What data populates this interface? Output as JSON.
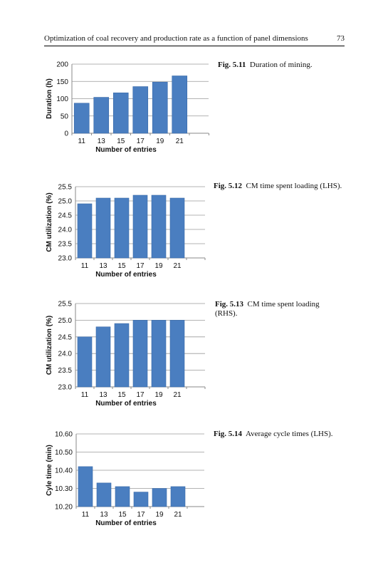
{
  "header": {
    "title": "Optimization of coal recovery and production rate as a function of panel dimensions",
    "page_number": "73"
  },
  "colors": {
    "bar": "#4a7ec0",
    "bar_stroke": "#3a6aa8",
    "grid": "#9a9a9a",
    "axis": "#8a8a8a"
  },
  "figures": [
    {
      "number": "Fig. 5.11",
      "caption": "Duration of mining."
    },
    {
      "number": "Fig. 5.12",
      "caption": "CM time spent loading (LHS)."
    },
    {
      "number": "Fig. 5.13",
      "caption": "CM time spent loading (RHS)."
    },
    {
      "number": "Fig. 5.14",
      "caption": "Average cycle times (LHS)."
    }
  ],
  "chart_data": [
    {
      "type": "bar",
      "categories": [
        "11",
        "13",
        "15",
        "17",
        "19",
        "21"
      ],
      "values": [
        87,
        104,
        117,
        135,
        148,
        166
      ],
      "xlabel": "Number of entries",
      "ylabel": "Duration (h)",
      "ylim": [
        0,
        200
      ],
      "yticks": [
        "0",
        "50",
        "100",
        "150",
        "200"
      ],
      "grid": true
    },
    {
      "type": "bar",
      "categories": [
        "11",
        "13",
        "15",
        "17",
        "19",
        "21"
      ],
      "values": [
        24.9,
        25.1,
        25.1,
        25.2,
        25.2,
        25.1
      ],
      "xlabel": "Number of entries",
      "ylabel": "CM utilization (%)",
      "ylim": [
        23.0,
        25.5
      ],
      "yticks": [
        "23.0",
        "23.5",
        "24.0",
        "24.5",
        "25.0",
        "25.5"
      ],
      "grid": true
    },
    {
      "type": "bar",
      "categories": [
        "11",
        "13",
        "15",
        "17",
        "19",
        "21"
      ],
      "values": [
        24.5,
        24.8,
        24.9,
        25.0,
        25.0,
        25.0
      ],
      "xlabel": "Number of entries",
      "ylabel": "CM utilization (%)",
      "ylim": [
        23.0,
        25.5
      ],
      "yticks": [
        "23.0",
        "23.5",
        "24.0",
        "24.5",
        "25.0",
        "25.5"
      ],
      "grid": true
    },
    {
      "type": "bar",
      "categories": [
        "11",
        "13",
        "15",
        "17",
        "19",
        "21"
      ],
      "values": [
        10.42,
        10.33,
        10.31,
        10.28,
        10.3,
        10.31
      ],
      "xlabel": "Number of entries",
      "ylabel": "Cyle time (min)",
      "ylim": [
        10.2,
        10.6
      ],
      "yticks": [
        "10.20",
        "10.30",
        "10.40",
        "10.50",
        "10.60"
      ],
      "grid": true
    }
  ]
}
